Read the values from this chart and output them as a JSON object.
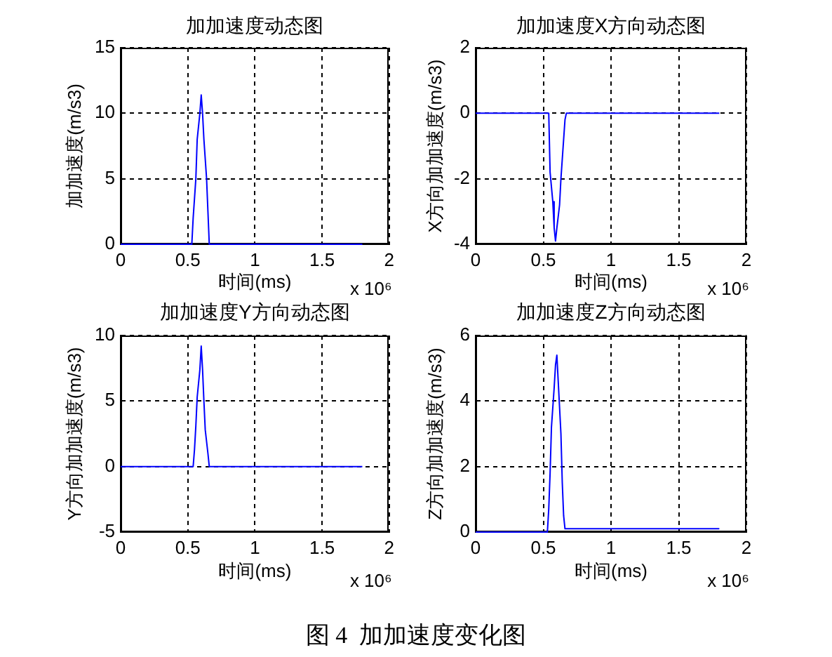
{
  "chart_data": [
    {
      "type": "line",
      "title": "加加速度动态图",
      "xlabel": "时间(ms)",
      "ylabel": "加加速度(m/s3)",
      "annotations": [
        "x 10⁶"
      ],
      "x": [
        0,
        0.53,
        0.54,
        0.56,
        0.57,
        0.59,
        0.6,
        0.61,
        0.62,
        0.64,
        0.65,
        0.66,
        1.8
      ],
      "values": [
        0,
        0,
        2,
        5,
        8,
        10,
        11.4,
        10,
        8,
        5,
        2.5,
        0,
        0
      ],
      "color": "#0000ff",
      "xlim": [
        0,
        2
      ],
      "xticks": [
        0,
        0.5,
        1,
        1.5,
        2
      ],
      "ylim": [
        0,
        15
      ],
      "yticks": [
        0,
        5,
        10,
        15
      ],
      "grid": true
    },
    {
      "type": "line",
      "title": "加加速度X方向动态图",
      "xlabel": "时间(ms)",
      "ylabel": "X方向加加速度(m/s3)",
      "annotations": [
        "x 10⁶"
      ],
      "x": [
        0,
        0.54,
        0.55,
        0.57,
        0.58,
        0.59,
        0.6,
        0.62,
        0.63,
        0.65,
        0.66,
        0.67,
        1.8
      ],
      "values": [
        0,
        0,
        -1.8,
        -2.7,
        -3.5,
        -3.9,
        -3.5,
        -2.8,
        -2,
        -0.8,
        -0.2,
        0,
        0
      ],
      "color": "#0000ff",
      "xlim": [
        0,
        2
      ],
      "xticks": [
        0,
        0.5,
        1,
        1.5,
        2
      ],
      "ylim": [
        -4,
        2
      ],
      "yticks": [
        -4,
        -2,
        0,
        2
      ],
      "grid": true
    },
    {
      "type": "line",
      "title": "加加速度Y方向动态图",
      "xlabel": "时间(ms)",
      "ylabel": "Y方向加加速度(m/s3)",
      "annotations": [
        "x 10⁶"
      ],
      "x": [
        0,
        0.54,
        0.55,
        0.56,
        0.57,
        0.59,
        0.6,
        0.61,
        0.62,
        0.63,
        0.65,
        0.66,
        1.8
      ],
      "values": [
        0,
        0,
        1.3,
        3.1,
        5.3,
        7.4,
        9.2,
        7.4,
        5,
        2.8,
        1,
        0,
        0
      ],
      "color": "#0000ff",
      "xlim": [
        0,
        2
      ],
      "xticks": [
        0,
        0.5,
        1,
        1.5,
        2
      ],
      "ylim": [
        -5,
        10
      ],
      "yticks": [
        -5,
        0,
        5,
        10
      ],
      "grid": true
    },
    {
      "type": "line",
      "title": "加加速度Z方向动态图",
      "xlabel": "时间(ms)",
      "ylabel": "Z方向加加速度(m/s3)",
      "annotations": [
        "x 10⁶",
        "图 4  加加速度变化图"
      ],
      "x": [
        0,
        0.53,
        0.54,
        0.55,
        0.56,
        0.58,
        0.59,
        0.6,
        0.61,
        0.63,
        0.64,
        0.65,
        0.66,
        1.8
      ],
      "values": [
        0,
        0,
        0.7,
        1.8,
        3.2,
        4.4,
        5.1,
        5.4,
        4.6,
        3,
        1.5,
        0.5,
        0.1,
        0.1
      ],
      "color": "#0000ff",
      "xlim": [
        0,
        2
      ],
      "xticks": [
        0,
        0.5,
        1,
        1.5,
        2
      ],
      "ylim": [
        0,
        6
      ],
      "yticks": [
        0,
        2,
        4,
        6
      ],
      "grid": true
    }
  ]
}
